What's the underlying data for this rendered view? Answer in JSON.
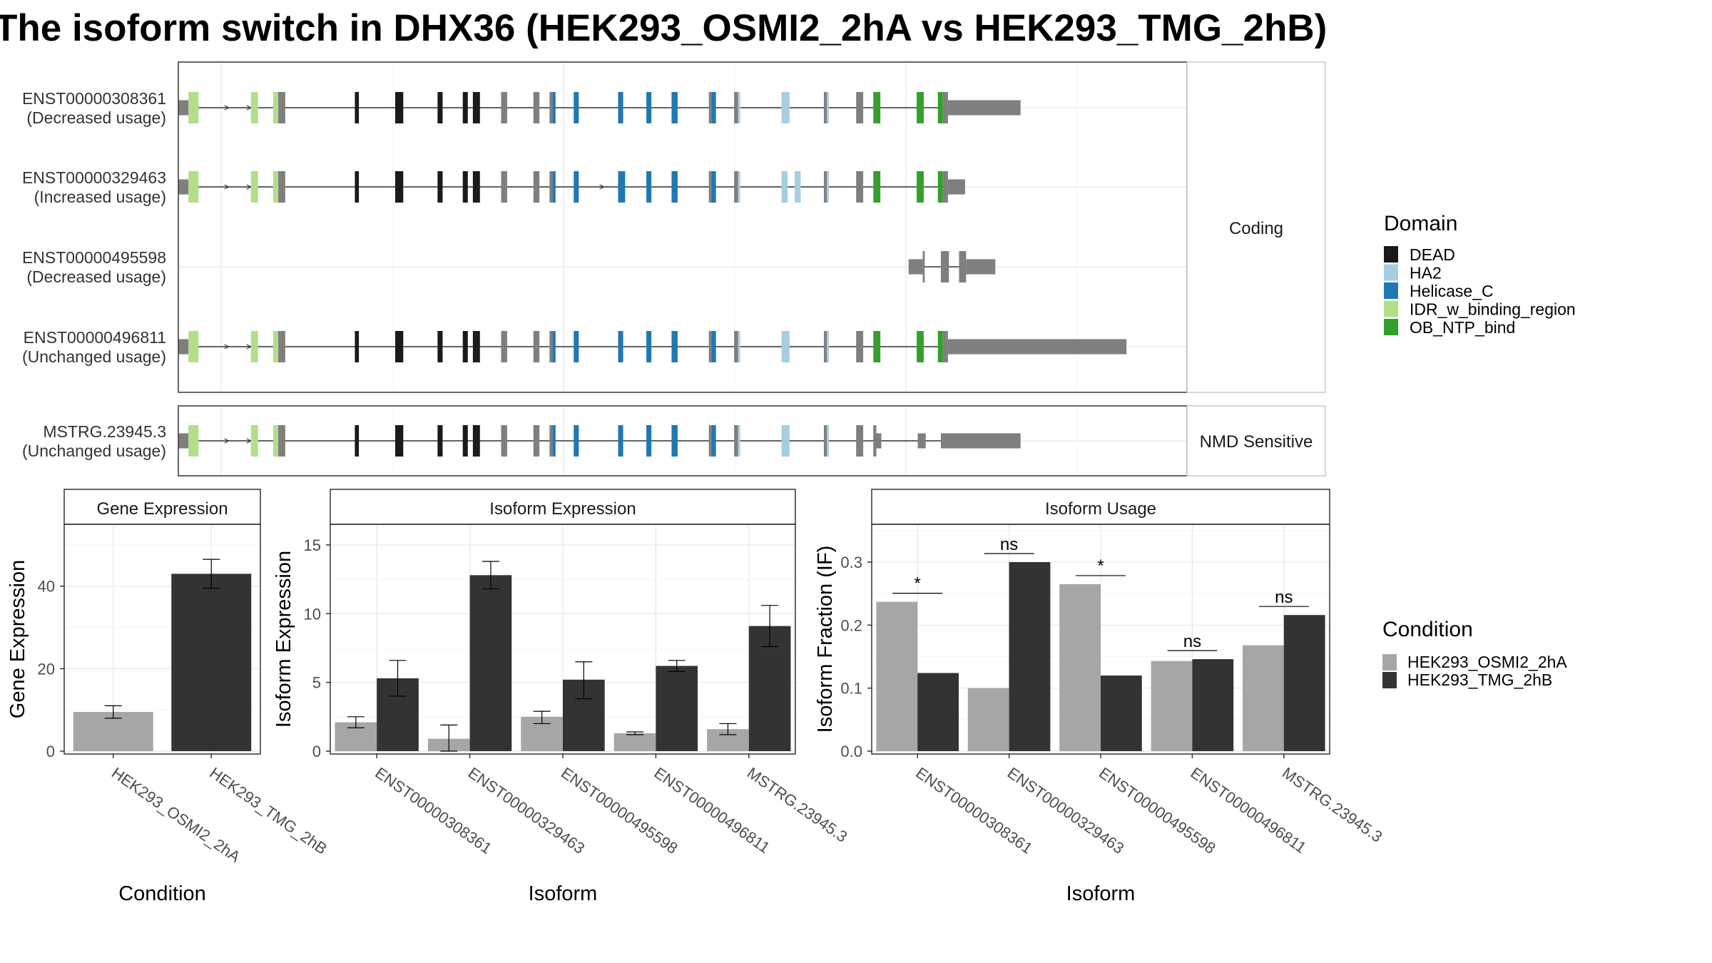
{
  "title": "The isoform switch in DHX36 (HEK293_OSMI2_2hA vs HEK293_TMG_2hB)",
  "structure": {
    "facets": [
      "Coding",
      "NMD Sensitive"
    ],
    "domains": [
      {
        "name": "DEAD",
        "color": "#1a1a1a"
      },
      {
        "name": "HA2",
        "color": "#a6cee3"
      },
      {
        "name": "Helicase_C",
        "color": "#1f78b4"
      },
      {
        "name": "IDR_w_binding_region",
        "color": "#b2df8a"
      },
      {
        "name": "OB_NTP_bind",
        "color": "#33a02c"
      }
    ],
    "domain_legend_title": "Domain",
    "utr_color": "#7f7f7f",
    "transcripts": [
      {
        "id": "ENST00000308361",
        "usage": "(Decreased usage)",
        "facet": "Coding",
        "kind": "full",
        "utr3_end": 0.835
      },
      {
        "id": "ENST00000329463",
        "usage": "(Increased usage)",
        "facet": "Coding",
        "kind": "full2",
        "utr3_end": 0.78
      },
      {
        "id": "ENST00000495598",
        "usage": "(Decreased usage)",
        "facet": "Coding",
        "kind": "short",
        "utr3_end": 0.81
      },
      {
        "id": "ENST00000496811",
        "usage": "(Unchanged usage)",
        "facet": "Coding",
        "kind": "full",
        "utr3_end": 0.94
      },
      {
        "id": "MSTRG.23945.3",
        "usage": "(Unchanged usage)",
        "facet": "NMD Sensitive",
        "kind": "nmd",
        "utr3_end": 0.835
      }
    ]
  },
  "chart_data": [
    {
      "type": "bar",
      "panel": "Gene Expression",
      "xlabel": "Condition",
      "ylabel": "Gene Expression",
      "ylim": [
        0,
        55
      ],
      "yticks": [
        0,
        20,
        40
      ],
      "categories": [
        "HEK293_OSMI2_2hA",
        "HEK293_TMG_2hB"
      ],
      "values": [
        9.5,
        43
      ],
      "errors": [
        [
          8,
          11
        ],
        [
          39.5,
          46.5
        ]
      ],
      "colors": [
        "#a6a6a6",
        "#333333"
      ]
    },
    {
      "type": "bar",
      "panel": "Isoform Expression",
      "xlabel": "Isoform",
      "ylabel": "Isoform Expression",
      "ylim": [
        0,
        16.5
      ],
      "yticks": [
        0,
        5,
        10,
        15
      ],
      "categories": [
        "ENST00000308361",
        "ENST00000329463",
        "ENST00000495598",
        "ENST00000496811",
        "MSTRG.23945.3"
      ],
      "series": [
        {
          "name": "HEK293_OSMI2_2hA",
          "color": "#a6a6a6",
          "values": [
            2.1,
            0.9,
            2.5,
            1.3,
            1.6
          ],
          "errors": [
            [
              1.7,
              2.5
            ],
            [
              0,
              1.9
            ],
            [
              2.0,
              2.9
            ],
            [
              1.2,
              1.4
            ],
            [
              1.2,
              2.0
            ]
          ]
        },
        {
          "name": "HEK293_TMG_2hB",
          "color": "#333333",
          "values": [
            5.3,
            12.8,
            5.2,
            6.2,
            9.1
          ],
          "errors": [
            [
              4.0,
              6.6
            ],
            [
              11.8,
              13.8
            ],
            [
              3.8,
              6.5
            ],
            [
              5.8,
              6.6
            ],
            [
              7.6,
              10.6
            ]
          ]
        }
      ]
    },
    {
      "type": "bar",
      "panel": "Isoform Usage",
      "xlabel": "Isoform",
      "ylabel": "Isoform Fraction (IF)",
      "ylim": [
        0,
        0.36
      ],
      "yticks": [
        0.0,
        0.1,
        0.2,
        0.3
      ],
      "ytick_labels": [
        "0.0",
        "0.1",
        "0.2",
        "0.3"
      ],
      "categories": [
        "ENST00000308361",
        "ENST00000329463",
        "ENST00000495598",
        "ENST00000496811",
        "MSTRG.23945.3"
      ],
      "series": [
        {
          "name": "HEK293_OSMI2_2hA",
          "color": "#a6a6a6",
          "values": [
            0.237,
            0.1,
            0.265,
            0.143,
            0.168
          ]
        },
        {
          "name": "HEK293_TMG_2hB",
          "color": "#333333",
          "values": [
            0.124,
            0.3,
            0.12,
            0.146,
            0.216
          ]
        }
      ],
      "significance": [
        "*",
        "ns",
        "*",
        "ns",
        "ns"
      ]
    }
  ],
  "condition_legend": {
    "title": "Condition",
    "items": [
      {
        "name": "HEK293_OSMI2_2hA",
        "color": "#a6a6a6"
      },
      {
        "name": "HEK293_TMG_2hB",
        "color": "#333333"
      }
    ]
  }
}
